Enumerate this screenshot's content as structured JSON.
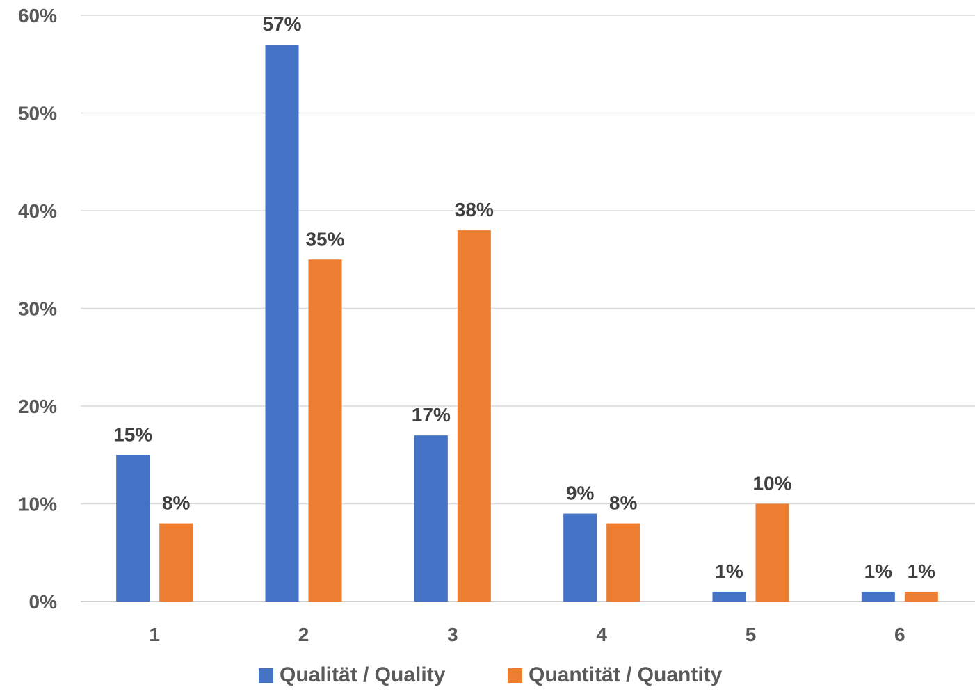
{
  "chart_data": {
    "type": "bar",
    "title": "",
    "xlabel": "",
    "ylabel": "",
    "categories": [
      "1",
      "2",
      "3",
      "4",
      "5",
      "6"
    ],
    "series": [
      {
        "name": "Qualität / Quality",
        "color": "#4472c4",
        "values": [
          15,
          57,
          17,
          9,
          1,
          1
        ],
        "labels": [
          "15%",
          "57%",
          "17%",
          "9%",
          "1%",
          "1%"
        ]
      },
      {
        "name": "Quantität / Quantity",
        "color": "#ed7d31",
        "values": [
          8,
          35,
          38,
          8,
          10,
          1
        ],
        "labels": [
          "8%",
          "35%",
          "38%",
          "8%",
          "10%",
          "1%"
        ]
      }
    ],
    "ylim": [
      0,
      60
    ],
    "y_ticks": [
      0,
      10,
      20,
      30,
      40,
      50,
      60
    ],
    "y_tick_labels": [
      "0%",
      "10%",
      "20%",
      "30%",
      "40%",
      "50%",
      "60%"
    ],
    "grid": true,
    "legend_position": "bottom"
  }
}
